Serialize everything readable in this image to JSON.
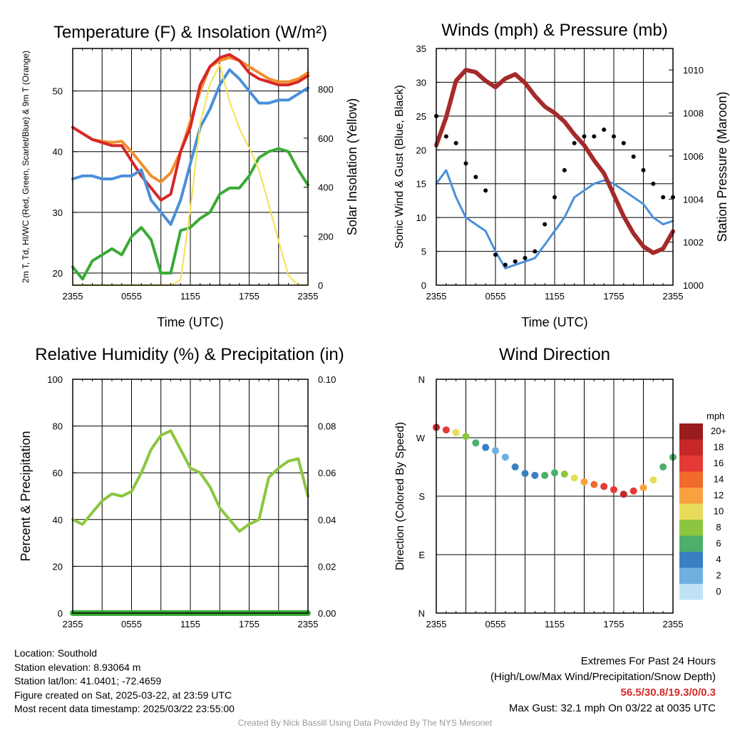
{
  "chart_data": [
    {
      "type": "line",
      "title": "Temperature (F) & Insolation (W/m²)",
      "xlabel": "Time (UTC)",
      "ylabel_left": "2m T, Td, HI/WC (Red, Green, Scarlet/Blue) & 9m T (Orange)",
      "ylabel_right": "Solar Insolation (Yellow)",
      "x_ticks": [
        "2355",
        "0555",
        "1155",
        "1755",
        "2355"
      ],
      "ylim_left": [
        18,
        57
      ],
      "ylim_right": [
        0,
        966
      ],
      "y_ticks_left": [
        20,
        30,
        40,
        50
      ],
      "y_ticks_right": [
        0,
        200,
        400,
        600,
        800
      ],
      "x": [
        0,
        1,
        2,
        3,
        4,
        5,
        6,
        7,
        8,
        9,
        10,
        11,
        12,
        13,
        14,
        15,
        16,
        17,
        18,
        19,
        20,
        21,
        22,
        23,
        24
      ],
      "series": [
        {
          "color": "#f28e2b",
          "values": [
            44,
            43,
            42,
            41.7,
            41.5,
            41.7,
            40,
            38,
            36,
            35,
            36.5,
            40,
            45,
            50,
            54,
            55,
            55.5,
            55,
            54,
            53,
            52,
            51.5,
            51.5,
            52,
            53
          ]
        },
        {
          "color": "#d62728",
          "values": [
            44,
            43,
            42,
            41.5,
            41,
            41,
            38.5,
            36,
            34,
            32,
            33,
            40,
            44,
            51,
            54,
            55.5,
            56,
            55,
            53,
            52,
            51.5,
            51,
            51,
            51.5,
            52.5
          ]
        },
        {
          "color": "#4a90d9",
          "values": [
            35.5,
            36,
            36,
            35.5,
            35.5,
            36,
            36,
            37,
            32,
            30,
            28,
            32,
            38,
            44,
            47,
            51,
            53.5,
            52,
            50,
            48,
            48,
            48.5,
            48.5,
            49.5,
            50.5
          ]
        },
        {
          "color": "#3aaa35",
          "values": [
            21,
            19,
            22,
            23,
            24,
            23,
            26,
            27.5,
            25.5,
            20,
            20,
            27,
            27.5,
            29,
            30,
            33,
            34,
            34,
            36,
            39,
            40,
            40.5,
            40,
            37,
            34.5
          ]
        },
        {
          "color": "#f4e04d",
          "values": [
            0,
            0,
            0,
            0,
            0,
            0,
            0,
            0,
            0,
            0,
            0,
            20,
            310,
            660,
            820,
            900,
            750,
            640,
            560,
            470,
            330,
            180,
            40,
            0,
            0
          ]
        }
      ]
    },
    {
      "type": "line",
      "title": "Winds (mph) & Pressure (mb)",
      "xlabel": "Time (UTC)",
      "ylabel_left": "Sonic Wind & Gust (Blue, Black)",
      "ylabel_right": "Station Pressure (Maroon)",
      "x_ticks": [
        "2355",
        "0555",
        "1155",
        "1755",
        "2355"
      ],
      "ylim_left": [
        0,
        35
      ],
      "ylim_right": [
        1000,
        1011
      ],
      "y_ticks_left": [
        0,
        5,
        10,
        15,
        20,
        25,
        30,
        35
      ],
      "y_ticks_right": [
        1000,
        1002,
        1004,
        1006,
        1008,
        1010
      ],
      "x": [
        0,
        1,
        2,
        3,
        4,
        5,
        6,
        7,
        8,
        9,
        10,
        11,
        12,
        13,
        14,
        15,
        16,
        17,
        18,
        19,
        20,
        21,
        22,
        23,
        24
      ],
      "series": [
        {
          "color": "#4a90d9",
          "values": [
            15,
            17,
            13,
            10,
            9,
            8,
            5,
            2.5,
            3,
            3.5,
            4,
            6,
            8,
            10,
            13,
            14,
            15,
            15.5,
            15,
            14,
            13,
            12,
            10,
            9,
            9.5
          ]
        },
        {
          "color": "#000000",
          "values": [
            25,
            22,
            21,
            18,
            16,
            14,
            4.5,
            3,
            3.5,
            4,
            5,
            9,
            13,
            17,
            21,
            22,
            22,
            23,
            22,
            21,
            19,
            17,
            15,
            13,
            13
          ]
        },
        {
          "color": "#a52a2a",
          "values": [
            1006.5,
            1007.8,
            1009.5,
            1010,
            1009.9,
            1009.5,
            1009.2,
            1009.6,
            1009.8,
            1009.4,
            1008.8,
            1008.3,
            1008.0,
            1007.6,
            1007,
            1006.5,
            1005.8,
            1005.2,
            1004.2,
            1003.2,
            1002.4,
            1001.8,
            1001.5,
            1001.7,
            1002.5
          ]
        }
      ]
    },
    {
      "type": "line",
      "title": "Relative Humidity (%) & Precipitation (in)",
      "ylabel_left": "Percent & Precipitation",
      "x_ticks": [
        "2355",
        "0555",
        "1155",
        "1755",
        "2355"
      ],
      "ylim_left": [
        0,
        100
      ],
      "ylim_right": [
        0,
        0.1
      ],
      "y_ticks_left": [
        0,
        20,
        40,
        60,
        80,
        100
      ],
      "y_ticks_right": [
        "0.00",
        "0.02",
        "0.04",
        "0.06",
        "0.08",
        "0.10"
      ],
      "x": [
        0,
        1,
        2,
        3,
        4,
        5,
        6,
        7,
        8,
        9,
        10,
        11,
        12,
        13,
        14,
        15,
        16,
        17,
        18,
        19,
        20,
        21,
        22,
        23,
        24
      ],
      "series": [
        {
          "color": "#8cc63f",
          "values": [
            40,
            38,
            43,
            48,
            51,
            50,
            52,
            60,
            70,
            76,
            78,
            70,
            62,
            60,
            54,
            45,
            40,
            35,
            38,
            40,
            58,
            62,
            65,
            66,
            50
          ]
        },
        {
          "color": "#3aaa35",
          "values": [
            0,
            0,
            0,
            0,
            0,
            0,
            0,
            0,
            0,
            0,
            0,
            0,
            0,
            0,
            0,
            0,
            0,
            0,
            0,
            0,
            0,
            0,
            0,
            0,
            0
          ]
        }
      ]
    },
    {
      "type": "scatter",
      "title": "Wind Direction",
      "ylabel": "Direction (Colored By Speed)",
      "x_ticks": [
        "2355",
        "0555",
        "1155",
        "1755",
        "2355"
      ],
      "y_ticks": [
        "N",
        "E",
        "S",
        "W",
        "N"
      ],
      "ylim": [
        0,
        360
      ],
      "legend_title": "mph",
      "legend_labels": [
        "20+",
        "18",
        "16",
        "14",
        "12",
        "10",
        "8",
        "6",
        "4",
        "2",
        "0"
      ],
      "legend_colors": [
        "#9b1c1c",
        "#c62828",
        "#e53935",
        "#f06a2a",
        "#f9a03f",
        "#e8dc5a",
        "#8cc63f",
        "#4caf6a",
        "#3a7fc1",
        "#6fb0e0",
        "#bfe3f5"
      ],
      "x": [
        0,
        1,
        2,
        3,
        4,
        5,
        6,
        7,
        8,
        9,
        10,
        11,
        12,
        13,
        14,
        15,
        16,
        17,
        18,
        19,
        20,
        21,
        22,
        23,
        24
      ],
      "direction": [
        286,
        282,
        278,
        272,
        262,
        255,
        250,
        240,
        225,
        215,
        212,
        212,
        216,
        214,
        208,
        202,
        198,
        195,
        190,
        183,
        188,
        193,
        205,
        225,
        240
      ],
      "speed": [
        17,
        15,
        9,
        7,
        5,
        3,
        2,
        2,
        3,
        4,
        3,
        5,
        6,
        8,
        10,
        12,
        13,
        15,
        16,
        17,
        15,
        12,
        9,
        6,
        6
      ]
    }
  ],
  "info_left": [
    "Location: Southold",
    "Station elevation: 8.93064 m",
    "Station lat/lon: 41.0401; -72.4659",
    "Figure created on Sat, 2025-03-22, at 23:59 UTC",
    "Most recent data timestamp: 2025/03/22 23:55:00"
  ],
  "extremes": {
    "heading": "Extremes For Past 24 Hours",
    "subheading": "(High/Low/Max Wind/Precipitation/Snow Depth)",
    "values": "56.5/30.8/19.3/0/0.3",
    "max_gust": "Max Gust: 32.1 mph On 03/22 at 0035 UTC"
  },
  "credit": "Created By Nick Bassill Using Data Provided By The NYS Mesonet"
}
